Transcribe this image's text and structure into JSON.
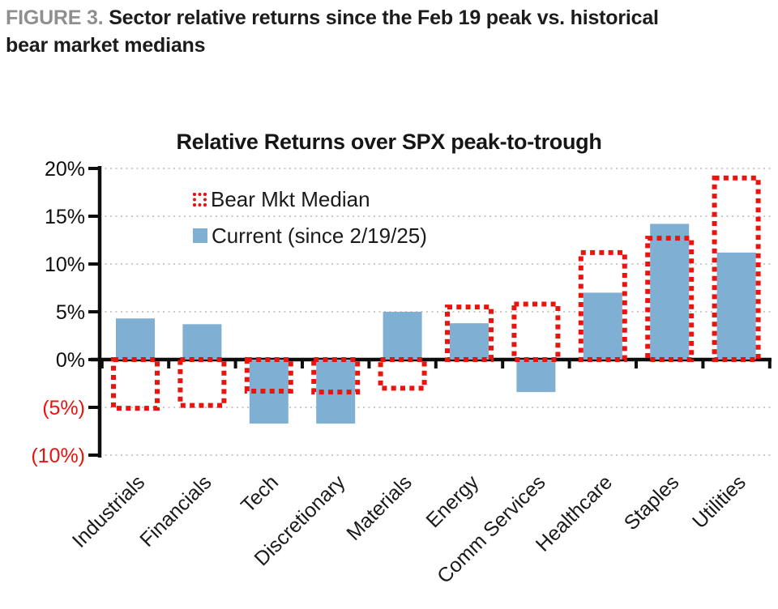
{
  "figure": {
    "prefix": "FIGURE 3.",
    "title_line1": "Sector relative returns since the Feb 19 peak vs. historical",
    "title_line2": "bear market medians"
  },
  "colors": {
    "red": "#ea140e",
    "blue": "#7fafd2",
    "grid": "#c9c9c9",
    "axis": "#0d0d0d",
    "text": "#1a1a1a",
    "header_prefix": "#8f8f8f"
  },
  "chart_data": {
    "type": "bar",
    "title": "Relative Returns over SPX peak-to-trough",
    "categories": [
      "Industrials",
      "Financials",
      "Tech",
      "Discretionary",
      "Materials",
      "Energy",
      "Comm Services",
      "Healthcare",
      "Staples",
      "Utilities"
    ],
    "series": [
      {
        "name": "Bear Mkt Median",
        "style": "dotted-outline",
        "color_key": "red",
        "values": [
          -5.1,
          -4.8,
          -3.3,
          -3.4,
          -3.0,
          5.5,
          5.8,
          11.2,
          12.7,
          19.0
        ]
      },
      {
        "name": "Current (since 2/19/25)",
        "style": "solid",
        "color_key": "blue",
        "values": [
          4.3,
          3.7,
          -6.7,
          -6.7,
          5.0,
          3.8,
          -3.4,
          7.0,
          14.2,
          11.2
        ]
      }
    ],
    "ylim": [
      -10,
      20
    ],
    "yticks": [
      {
        "value": 20,
        "label": "20%"
      },
      {
        "value": 15,
        "label": "15%"
      },
      {
        "value": 10,
        "label": "10%"
      },
      {
        "value": 5,
        "label": "5%"
      },
      {
        "value": 0,
        "label": "0%"
      },
      {
        "value": -5,
        "label": "(5%)"
      },
      {
        "value": -10,
        "label": "(10%)"
      }
    ],
    "ytick_negative_style": "red-parentheses",
    "grid": "horizontal-dotted",
    "legend_position": "top-left-inside",
    "x_label_rotation": -45
  }
}
